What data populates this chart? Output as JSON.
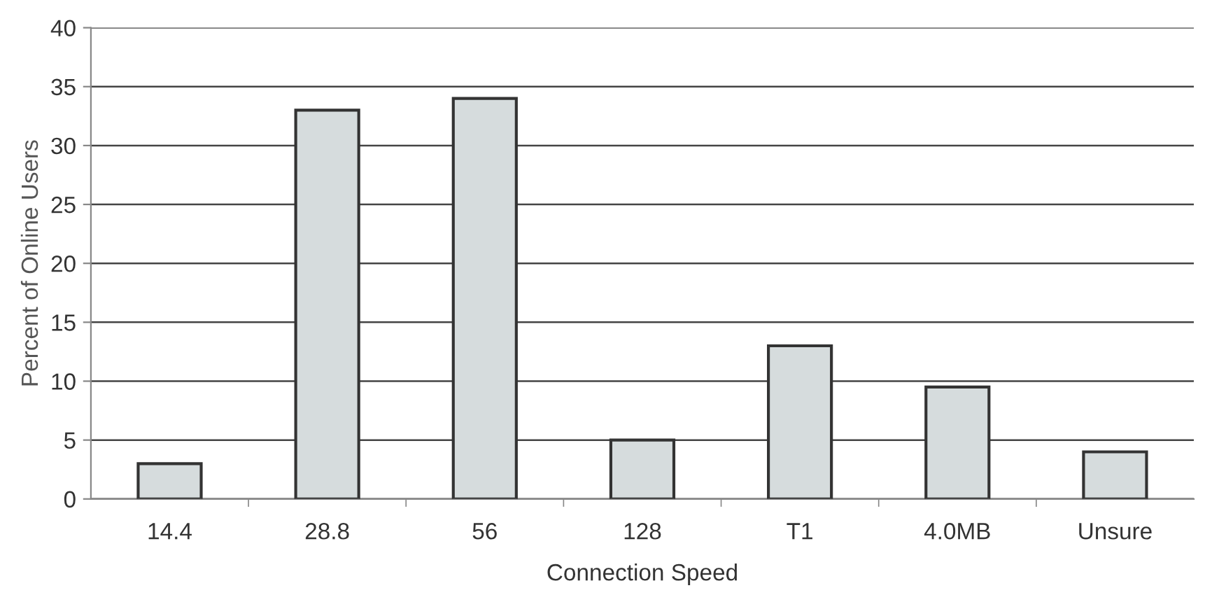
{
  "chart_data": {
    "type": "bar",
    "xlabel": "Connection Speed",
    "ylabel": "Percent of Online Users",
    "categories": [
      "14.4",
      "28.8",
      "56",
      "128",
      "T1",
      "4.0MB",
      "Unsure"
    ],
    "values": [
      3,
      33,
      34,
      5,
      13,
      9.5,
      4
    ],
    "color": "#d6dcdd",
    "ylim": [
      0,
      40
    ],
    "yticks": [
      0,
      5,
      10,
      15,
      20,
      25,
      30,
      35,
      40
    ],
    "grid": "y",
    "legend": false
  }
}
